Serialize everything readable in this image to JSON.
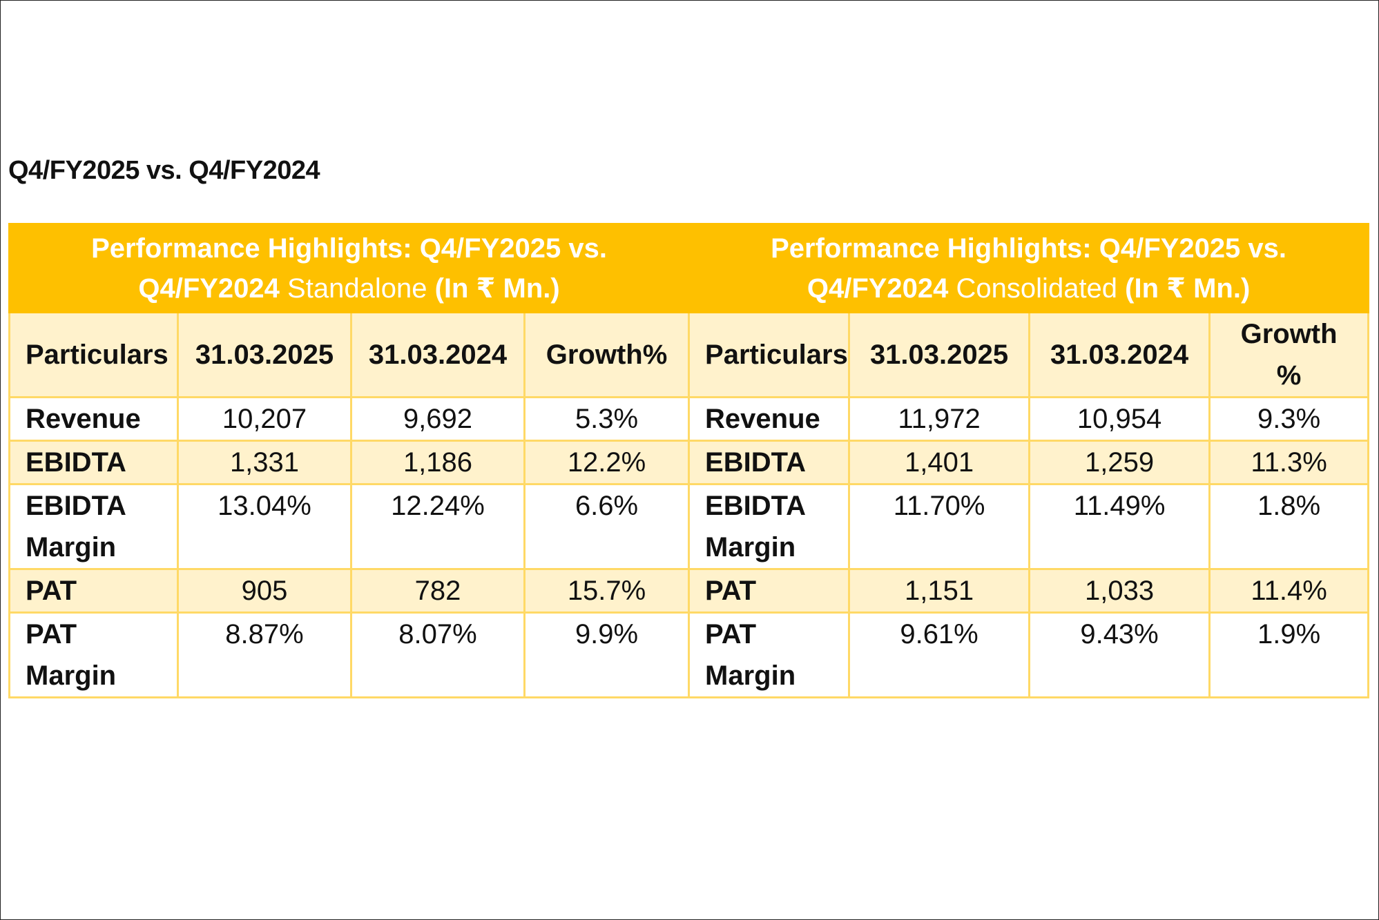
{
  "heading": "Q4/FY2025 vs. Q4/FY2024",
  "standalone": {
    "title_line1": "Performance Highlights: Q4/FY2025 vs.",
    "title_line2_a": "Q4/FY2024",
    "title_line2_b": "Standalone",
    "title_line2_c": "(In ₹ Mn.)",
    "columns": [
      "Particulars",
      "31.03.2025",
      "31.03.2024",
      "Growth%"
    ]
  },
  "consolidated": {
    "title_line1": "Performance Highlights: Q4/FY2025 vs.",
    "title_line2_a": "Q4/FY2024",
    "title_line2_b": "Consolidated",
    "title_line2_c": "(In ₹ Mn.)",
    "columns": [
      "Particulars",
      "31.03.2025",
      "31.03.2024",
      "Growth %"
    ]
  },
  "rows": [
    {
      "s_label": "Revenue",
      "s_2025": "10,207",
      "s_2024": "9,692",
      "s_growth": "5.3%",
      "c_label": "Revenue",
      "c_2025": "11,972",
      "c_2024": "10,954",
      "c_growth": "9.3%"
    },
    {
      "s_label": "EBIDTA",
      "s_2025": "1,331",
      "s_2024": "1,186",
      "s_growth": "12.2%",
      "c_label": "EBIDTA",
      "c_2025": "1,401",
      "c_2024": "1,259",
      "c_growth": "11.3%"
    },
    {
      "s_label_1": "EBIDTA",
      "s_label_2": "Margin",
      "s_2025": "13.04%",
      "s_2024": "12.24%",
      "s_growth": "6.6%",
      "c_label_1": "EBIDTA",
      "c_label_2": "Margin",
      "c_2025": "11.70%",
      "c_2024": "11.49%",
      "c_growth": "1.8%"
    },
    {
      "s_label": "PAT",
      "s_2025": "905",
      "s_2024": "782",
      "s_growth": "15.7%",
      "c_label": "PAT",
      "c_2025": "1,151",
      "c_2024": "1,033",
      "c_growth": "11.4%"
    },
    {
      "s_label_1": "PAT",
      "s_label_2": "Margin",
      "s_2025": "8.87%",
      "s_2024": "8.07%",
      "s_growth": "9.9%",
      "c_label_1": "PAT",
      "c_label_2": "Margin",
      "c_2025": "9.61%",
      "c_2024": "9.43%",
      "c_growth": "1.9%"
    }
  ],
  "colors": {
    "header_bg": "#fec000",
    "band_bg": "#fff2cc",
    "grid": "#ffd966"
  }
}
